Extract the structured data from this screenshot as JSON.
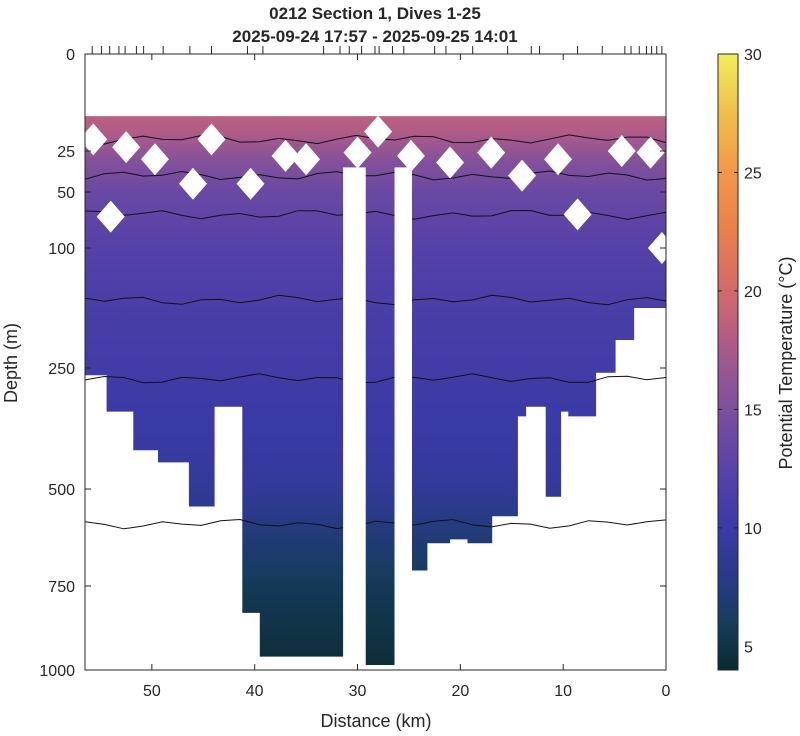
{
  "chart_data": {
    "type": "heatmap",
    "title": "0212 Section 1, Dives 1-25",
    "subtitle": "2025-09-24 17:57 - 2025-09-25 14:01",
    "xlabel": "Distance (km)",
    "ylabel": "Depth (m)",
    "xlim": [
      56.5,
      0
    ],
    "x_reversed": true,
    "x_ticks": [
      50,
      40,
      30,
      20,
      10,
      0
    ],
    "y_scale": "stretched (upper 250 m expanded)",
    "y_ticks": [
      0,
      25,
      50,
      100,
      250,
      500,
      750,
      1000
    ],
    "colorbar": {
      "label": "Potential Temperature (°C)",
      "range": [
        4,
        30
      ],
      "ticks": [
        5,
        10,
        15,
        20,
        25,
        30
      ],
      "colormap": "thermal (dark teal → blue → purple → orange → yellow)"
    },
    "dive_tick_distances_km": [
      55.8,
      54.9,
      54.1,
      53.2,
      52.6,
      51.5,
      50.8,
      48.9,
      46.3,
      44.2,
      40.7,
      39.2,
      33.3,
      31.7,
      30.8,
      29.6,
      28.3,
      27.9,
      26.6,
      25.5,
      22.5,
      21.4,
      18.8,
      15.4,
      13.1,
      12.3,
      8.6,
      6.2,
      4.0,
      3.4,
      2.6,
      1.9,
      1.4,
      0.9,
      0.4
    ],
    "dives": [
      {
        "x": 56.5,
        "max_depth": 330
      },
      {
        "x": 54.4,
        "max_depth": 265
      },
      {
        "x": 51.8,
        "max_depth": 340
      },
      {
        "x": 49.4,
        "max_depth": 420
      },
      {
        "x": 46.4,
        "max_depth": 445
      },
      {
        "x": 43.9,
        "max_depth": 545
      },
      {
        "x": 41.2,
        "max_depth": 330
      },
      {
        "x": 39.5,
        "max_depth": 830
      },
      {
        "x": 34.4,
        "max_depth": 960
      },
      {
        "x": 31.2,
        "max_depth": 960
      },
      {
        "x": 28.4,
        "max_depth": 985
      },
      {
        "x": 26.2,
        "max_depth": 985
      },
      {
        "x": 23.2,
        "max_depth": 710
      },
      {
        "x": 21.0,
        "max_depth": 640
      },
      {
        "x": 19.3,
        "max_depth": 630
      },
      {
        "x": 16.9,
        "max_depth": 640
      },
      {
        "x": 14.4,
        "max_depth": 570
      },
      {
        "x": 13.6,
        "max_depth": 350
      },
      {
        "x": 11.7,
        "max_depth": 330
      },
      {
        "x": 10.2,
        "max_depth": 520
      },
      {
        "x": 9.5,
        "max_depth": 340
      },
      {
        "x": 6.8,
        "max_depth": 350
      },
      {
        "x": 4.9,
        "max_depth": 260
      },
      {
        "x": 3.1,
        "max_depth": 215
      },
      {
        "x": 0.9,
        "max_depth": 175
      },
      {
        "x": 0.0,
        "max_depth": 175
      }
    ],
    "gaps_km": [
      [
        29.2,
        31.4
      ],
      [
        24.7,
        26.4
      ]
    ],
    "surface_data_top_m": 16,
    "temperature_profile": [
      {
        "depth": 16,
        "temp": 19.5
      },
      {
        "depth": 25,
        "temp": 16.0
      },
      {
        "depth": 50,
        "temp": 13.6
      },
      {
        "depth": 100,
        "temp": 12.2
      },
      {
        "depth": 175,
        "temp": 11.2
      },
      {
        "depth": 250,
        "temp": 10.6
      },
      {
        "depth": 400,
        "temp": 9.8
      },
      {
        "depth": 500,
        "temp": 9.0
      },
      {
        "depth": 600,
        "temp": 7.4
      },
      {
        "depth": 750,
        "temp": 5.7
      },
      {
        "depth": 1000,
        "temp": 4.3
      }
    ],
    "contour_lines_depth_m": [
      22,
      40,
      70,
      165,
      272,
      590
    ]
  }
}
